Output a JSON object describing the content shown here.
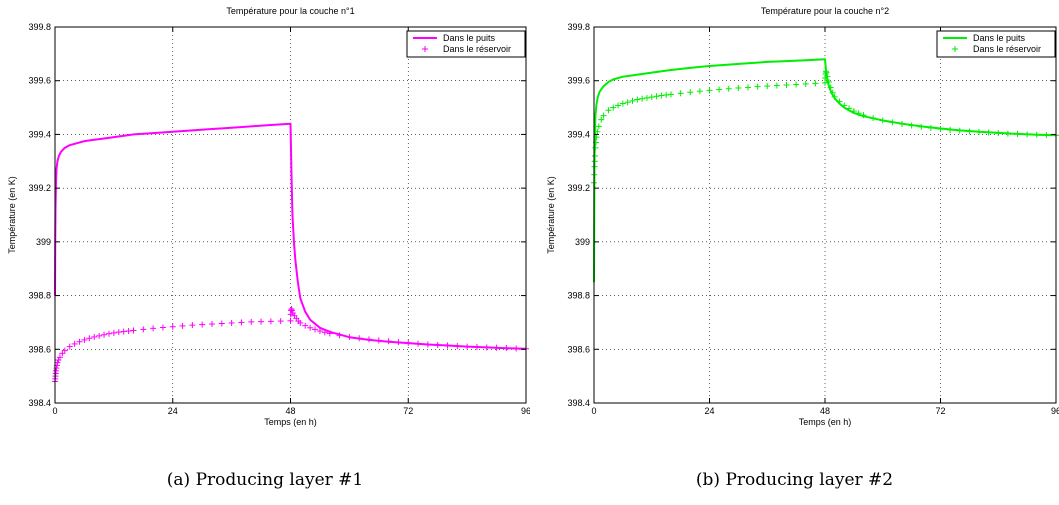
{
  "chart_data": [
    {
      "type": "line",
      "title": "Température pour la couche n°1",
      "xlabel": "Temps (en h)",
      "ylabel": "Température (en K)",
      "caption": "(a) Producing layer #1",
      "xlim": [
        0,
        96
      ],
      "ylim": [
        398.4,
        399.8
      ],
      "xticks": [
        0,
        24,
        48,
        72,
        96
      ],
      "xtick_labels": [
        "0",
        "24",
        "48",
        "72",
        "96"
      ],
      "yticks": [
        398.4,
        398.6,
        398.8,
        399,
        399.2,
        399.4,
        399.6,
        399.8
      ],
      "ytick_labels": [
        "398.4",
        "398.6",
        "398.8",
        "399",
        "399.2",
        "399.4",
        "399.6",
        "399.8"
      ],
      "grid": true,
      "legend_position": "top-right",
      "color": "#ff00ff",
      "series": [
        {
          "name": "Dans le puits",
          "style": "solid-line",
          "x": [
            0,
            0.05,
            0.1,
            0.2,
            0.3,
            0.5,
            0.8,
            1.2,
            2,
            3,
            4,
            6,
            8,
            10,
            12,
            16,
            20,
            24,
            28,
            32,
            36,
            40,
            44,
            48,
            48.2,
            48.4,
            48.7,
            49,
            49.5,
            50,
            51,
            52,
            54,
            56,
            60,
            64,
            68,
            72,
            76,
            80,
            84,
            88,
            92,
            96
          ],
          "y": [
            398.8,
            399.0,
            399.12,
            399.22,
            399.27,
            399.3,
            399.32,
            399.335,
            399.35,
            399.36,
            399.365,
            399.375,
            399.38,
            399.385,
            399.39,
            399.4,
            399.405,
            399.41,
            399.415,
            399.42,
            399.425,
            399.43,
            399.435,
            399.44,
            399.25,
            399.1,
            399.0,
            398.93,
            398.85,
            398.79,
            398.74,
            398.71,
            398.68,
            398.665,
            398.645,
            398.635,
            398.628,
            398.623,
            398.618,
            398.614,
            398.61,
            398.607,
            398.604,
            398.602
          ]
        },
        {
          "name": "Dans le réservoir",
          "style": "plus-markers",
          "x": [
            0,
            0.05,
            0.1,
            0.15,
            0.2,
            0.3,
            0.4,
            0.5,
            0.7,
            1,
            1.5,
            2,
            3,
            4,
            5,
            6,
            7,
            8,
            9,
            10,
            11,
            12,
            13,
            14,
            15,
            16,
            18,
            20,
            22,
            24,
            26,
            28,
            30,
            32,
            34,
            36,
            38,
            40,
            42,
            44,
            46,
            48,
            48.05,
            48.1,
            48.2,
            48.3,
            48.5,
            48.8,
            49.2,
            49.6,
            50,
            51,
            52,
            53,
            54,
            55,
            56,
            58,
            60,
            62,
            64,
            66,
            68,
            70,
            72,
            74,
            76,
            78,
            80,
            82,
            84,
            86,
            88,
            90,
            92,
            94,
            96
          ],
          "y": [
            398.48,
            398.49,
            398.5,
            398.51,
            398.52,
            398.53,
            398.54,
            398.55,
            398.56,
            398.57,
            398.585,
            398.595,
            398.61,
            398.62,
            398.628,
            398.635,
            398.641,
            398.646,
            398.65,
            398.654,
            398.658,
            398.661,
            398.664,
            398.666,
            398.668,
            398.67,
            398.674,
            398.678,
            398.681,
            398.684,
            398.687,
            398.69,
            398.692,
            398.694,
            398.696,
            398.698,
            398.7,
            398.702,
            398.703,
            398.704,
            398.705,
            398.706,
            398.73,
            398.745,
            398.75,
            398.745,
            398.735,
            398.725,
            398.715,
            398.705,
            398.698,
            398.688,
            398.68,
            398.674,
            398.668,
            398.663,
            398.659,
            398.652,
            398.646,
            398.641,
            398.637,
            398.633,
            398.63,
            398.627,
            398.624,
            398.621,
            398.618,
            398.616,
            398.614,
            398.612,
            398.61,
            398.609,
            398.607,
            398.606,
            398.605,
            398.603,
            398.602
          ]
        }
      ]
    },
    {
      "type": "line",
      "title": "Température pour la couche n°2",
      "xlabel": "Temps (en h)",
      "ylabel": "Température (en K)",
      "caption": "(b) Producing layer #2",
      "xlim": [
        0,
        96
      ],
      "ylim": [
        398.4,
        399.8
      ],
      "xticks": [
        0,
        24,
        48,
        72,
        96
      ],
      "xtick_labels": [
        "0",
        "24",
        "48",
        "72",
        "96"
      ],
      "yticks": [
        398.4,
        398.6,
        398.8,
        399,
        399.2,
        399.4,
        399.6,
        399.8
      ],
      "ytick_labels": [
        "398.4",
        "398.6",
        "398.8",
        "399",
        "399.2",
        "399.4",
        "399.6",
        "399.8"
      ],
      "grid": true,
      "legend_position": "top-right",
      "color": "#00ee00",
      "series": [
        {
          "name": "Dans le puits",
          "style": "solid-line",
          "x": [
            0,
            0.05,
            0.1,
            0.2,
            0.3,
            0.5,
            0.8,
            1.2,
            2,
            3,
            4,
            6,
            8,
            10,
            12,
            16,
            20,
            24,
            28,
            32,
            36,
            40,
            44,
            48,
            48.2,
            48.5,
            49,
            49.5,
            50,
            51,
            52,
            54,
            56,
            60,
            64,
            68,
            72,
            76,
            80,
            84,
            88,
            92,
            96
          ],
          "y": [
            398.85,
            399.1,
            399.3,
            399.42,
            399.47,
            399.51,
            399.54,
            399.56,
            399.58,
            399.595,
            399.605,
            399.615,
            399.62,
            399.625,
            399.63,
            399.64,
            399.648,
            399.655,
            399.66,
            399.665,
            399.67,
            399.673,
            399.676,
            399.68,
            399.64,
            399.6,
            399.57,
            399.55,
            399.535,
            399.515,
            399.5,
            399.48,
            399.468,
            399.452,
            399.44,
            399.43,
            399.422,
            399.415,
            399.41,
            399.406,
            399.402,
            399.399,
            399.397
          ]
        },
        {
          "name": "Dans le réservoir",
          "style": "plus-markers",
          "x": [
            0,
            0.05,
            0.1,
            0.15,
            0.2,
            0.3,
            0.4,
            0.5,
            0.7,
            1,
            1.5,
            2,
            3,
            4,
            5,
            6,
            7,
            8,
            9,
            10,
            11,
            12,
            13,
            14,
            15,
            16,
            18,
            20,
            22,
            24,
            26,
            28,
            30,
            32,
            34,
            36,
            38,
            40,
            42,
            44,
            46,
            48,
            48.05,
            48.1,
            48.2,
            48.3,
            48.5,
            48.8,
            49.2,
            49.6,
            50,
            51,
            52,
            53,
            54,
            55,
            56,
            58,
            60,
            62,
            64,
            66,
            68,
            70,
            72,
            74,
            76,
            78,
            80,
            82,
            84,
            86,
            88,
            90,
            92,
            94,
            96
          ],
          "y": [
            399.22,
            399.25,
            399.28,
            399.3,
            399.32,
            399.35,
            399.37,
            399.39,
            399.41,
            399.43,
            399.455,
            399.47,
            399.49,
            399.5,
            399.508,
            399.515,
            399.52,
            399.525,
            399.53,
            399.533,
            399.536,
            399.539,
            399.542,
            399.545,
            399.547,
            399.549,
            399.553,
            399.557,
            399.561,
            399.564,
            399.567,
            399.57,
            399.573,
            399.575,
            399.578,
            399.58,
            399.582,
            399.584,
            399.586,
            399.588,
            399.59,
            399.592,
            399.61,
            399.625,
            399.635,
            399.63,
            399.615,
            399.595,
            399.575,
            399.555,
            399.54,
            399.522,
            399.508,
            399.497,
            399.487,
            399.479,
            399.472,
            399.461,
            399.452,
            399.445,
            399.439,
            399.433,
            399.428,
            399.424,
            399.42,
            399.417,
            399.414,
            399.411,
            399.409,
            399.407,
            399.405,
            399.403,
            399.402,
            399.4,
            399.399,
            399.398,
            399.397
          ]
        }
      ]
    }
  ]
}
